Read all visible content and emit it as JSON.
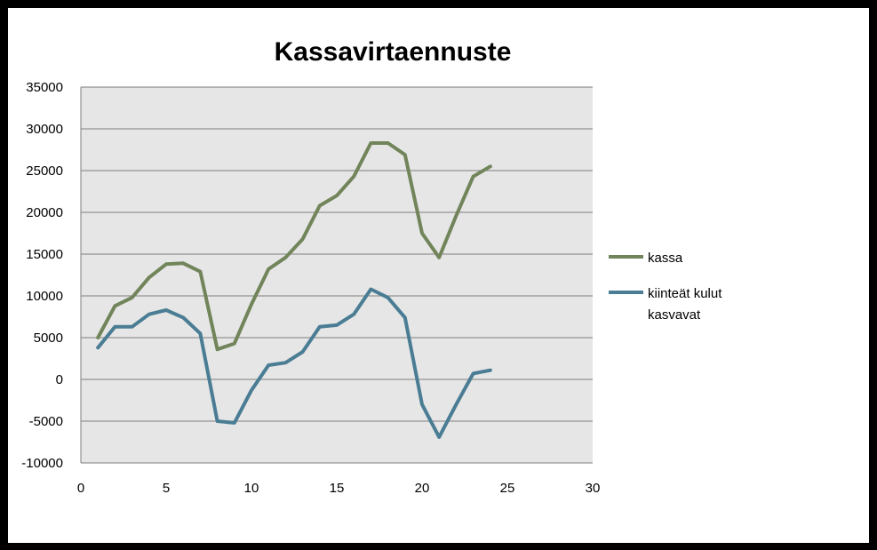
{
  "chart_data": {
    "type": "line",
    "title": "Kassavirtaennuste",
    "xlabel": "",
    "ylabel": "",
    "xlim": [
      0,
      30
    ],
    "ylim": [
      -10000,
      35000
    ],
    "x_ticks": [
      0,
      5,
      10,
      15,
      20,
      25,
      30
    ],
    "y_ticks": [
      -10000,
      -5000,
      0,
      5000,
      10000,
      15000,
      20000,
      25000,
      30000,
      35000
    ],
    "grid": true,
    "legend_position": "right",
    "plot_background": "#e6e6e6",
    "series": [
      {
        "name": "kassa",
        "legend_lines": [
          "kassa"
        ],
        "color": "#71845a",
        "x": [
          1,
          2,
          3,
          4,
          5,
          6,
          7,
          8,
          9,
          10,
          11,
          12,
          13,
          14,
          15,
          16,
          17,
          18,
          19,
          20,
          21,
          22,
          23,
          24
        ],
        "values": [
          5000,
          8800,
          9800,
          12200,
          13800,
          13900,
          12900,
          3600,
          4300,
          9000,
          13200,
          14600,
          16800,
          20800,
          22000,
          24300,
          28300,
          28300,
          26900,
          17500,
          14600,
          19600,
          24300,
          25500
        ]
      },
      {
        "name": "kiinteät kulut kasvavat",
        "legend_lines": [
          "kiinteät kulut",
          "kasvavat"
        ],
        "color": "#4a7d94",
        "x": [
          1,
          2,
          3,
          4,
          5,
          6,
          7,
          8,
          9,
          10,
          11,
          12,
          13,
          14,
          15,
          16,
          17,
          18,
          19,
          20,
          21,
          22,
          23,
          24
        ],
        "values": [
          3800,
          6300,
          6300,
          7800,
          8300,
          7400,
          5500,
          -5000,
          -5200,
          -1300,
          1700,
          2000,
          3300,
          6300,
          6500,
          7800,
          10800,
          9800,
          7400,
          -3000,
          -6900,
          -3000,
          700,
          1100
        ]
      }
    ]
  }
}
